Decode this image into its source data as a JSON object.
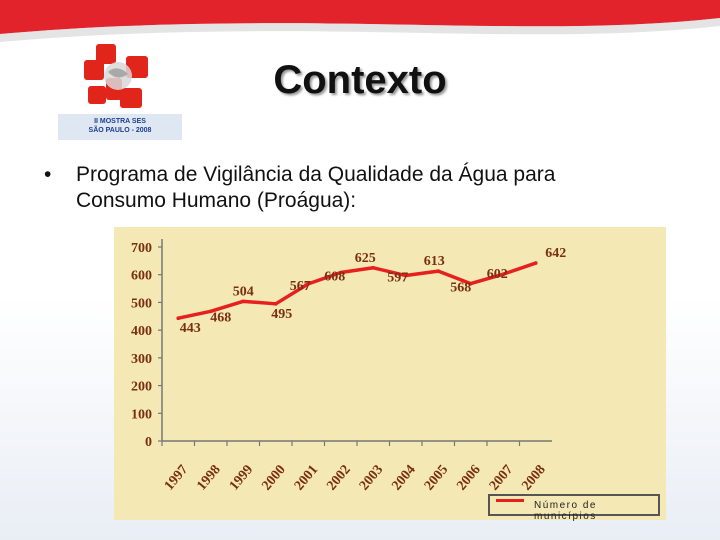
{
  "slide": {
    "title": "Contexto",
    "logo_caption_line1": "II MOSTRA SES",
    "logo_caption_line2": "SÃO PAULO - 2008",
    "bullet_symbol": "•",
    "bullet_text_line1": "Programa de Vigilância da Qualidade da Água para",
    "bullet_text_line2": "Consumo Humano (Proágua):"
  },
  "colors": {
    "top_band_red": "#e3232b",
    "logo_red": "#e1251b",
    "chart_background": "#f4e9b5",
    "series_line": "#e6201f",
    "label_color": "#7a2e12"
  },
  "chart_data": {
    "type": "line",
    "categories": [
      "1997",
      "1998",
      "1999",
      "2000",
      "2001",
      "2002",
      "2003",
      "2004",
      "2005",
      "2006",
      "2007",
      "2008"
    ],
    "series": [
      {
        "name": "Número de municípios",
        "values": [
          443,
          468,
          504,
          495,
          567,
          608,
          625,
          597,
          613,
          568,
          602,
          642
        ]
      }
    ],
    "y_ticks": [
      "0",
      "100",
      "200",
      "300",
      "400",
      "500",
      "600",
      "700"
    ],
    "ylim": [
      0,
      700
    ],
    "title": "",
    "xlabel": "",
    "ylabel": "",
    "legend": "bottom-right",
    "grid": false
  }
}
